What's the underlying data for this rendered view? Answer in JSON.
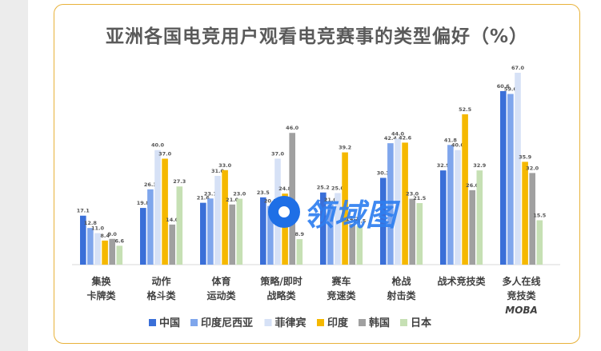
{
  "title": "亚洲各国电竞用户观看电竞赛事的类型偏好（%）",
  "watermark_text": "领域图",
  "chart_data": {
    "type": "bar",
    "title": "亚洲各国电竞用户观看电竞赛事的类型偏好（%）",
    "categories": [
      [
        "集换",
        "卡牌类"
      ],
      [
        "动作",
        "格斗类"
      ],
      [
        "体育",
        "运动类"
      ],
      [
        "策略/即时",
        "战略类"
      ],
      [
        "赛车",
        "竞速类"
      ],
      [
        "枪战",
        "射击类"
      ],
      [
        "战术竞技类"
      ],
      [
        "多人在线",
        "竞技类",
        "MOBA"
      ]
    ],
    "ylim": [
      0,
      70
    ],
    "grid": false,
    "legend_position": "bottom",
    "series": [
      {
        "name": "中国",
        "color": "#3a6fd8",
        "values": [
          17.1,
          19.8,
          21.6,
          23.5,
          25.2,
          30.3,
          32.9,
          60.6
        ]
      },
      {
        "name": "印度尼西亚",
        "color": "#7fa6ec",
        "values": [
          12.8,
          26.3,
          23.1,
          20.5,
          21.0,
          42.4,
          41.8,
          59.6
        ]
      },
      {
        "name": "菲律宾",
        "color": "#d6e1f6",
        "values": [
          11.0,
          40.0,
          31.0,
          37.0,
          25.0,
          44.0,
          40.0,
          67.0
        ]
      },
      {
        "name": "印度",
        "color": "#f5b800",
        "values": [
          8.4,
          37.0,
          33.0,
          24.8,
          39.2,
          42.6,
          52.5,
          35.9
        ]
      },
      {
        "name": "韩国",
        "color": "#a0a0a0",
        "values": [
          9.0,
          14.0,
          21.0,
          46.0,
          14.2,
          23.0,
          26.0,
          32.0
        ]
      },
      {
        "name": "日本",
        "color": "#c6e0b4",
        "values": [
          6.6,
          27.3,
          23.0,
          8.9,
          13.5,
          21.5,
          32.9,
          15.5
        ]
      }
    ]
  }
}
